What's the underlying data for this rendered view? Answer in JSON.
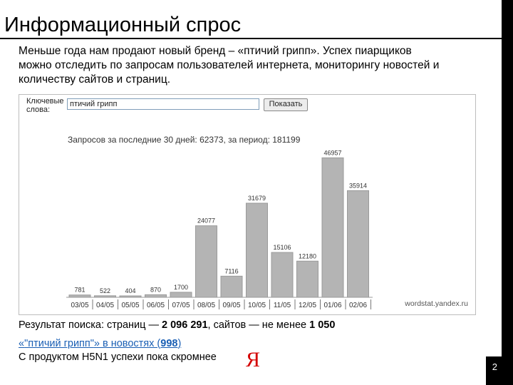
{
  "slide": {
    "title": "Информационный спрос",
    "intro": "Меньше года нам продают новый бренд – «птичий грипп». Успех пиарщиков можно отследить по запросам пользователей интернета, мониторингу новостей и количеству сайтов и страниц.",
    "page_number": "2"
  },
  "widget": {
    "keywords_label_line1": "Ключевые",
    "keywords_label_line2": "слова:",
    "keywords_value": "птичий грипп",
    "show_button": "Показать",
    "summary": "Запросов за последние 30 дней: 62373, за период: 181199",
    "watermark": "wordstat.yandex.ru"
  },
  "results": {
    "prefix": "Результат поиска: страниц — ",
    "pages": "2 096 291",
    "middle": ", сайтов — не менее ",
    "sites": "1 050"
  },
  "news": {
    "text_open": "«",
    "query": "\"птичий грипп\"",
    "text_close": "» в новостях (",
    "count": "998",
    "text_end": ")"
  },
  "product_line": "С продуктом H5N1 успехи пока скромнее",
  "logo_letter": "Я",
  "colors": {
    "bar": "#b4b4b4",
    "bar_stroke": "#9a9a9a",
    "link": "#1a5fb4",
    "logo": "#d40000"
  },
  "chart_data": {
    "type": "bar",
    "title": "Запросов за последние 30 дней: 62373, за период: 181199",
    "categories": [
      "03/05",
      "04/05",
      "05/05",
      "06/05",
      "07/05",
      "08/05",
      "09/05",
      "10/05",
      "11/05",
      "12/05",
      "01/06",
      "02/06"
    ],
    "values": [
      781,
      522,
      404,
      870,
      1700,
      24077,
      7116,
      31679,
      15106,
      12180,
      46957,
      35914
    ],
    "labels": [
      "781",
      "522",
      "404",
      "870",
      "1700",
      "24077",
      "7116",
      "31679",
      "15106",
      "12180",
      "46957",
      "35914"
    ],
    "ylim": [
      0,
      48000
    ],
    "xlabel": "",
    "ylabel": ""
  }
}
